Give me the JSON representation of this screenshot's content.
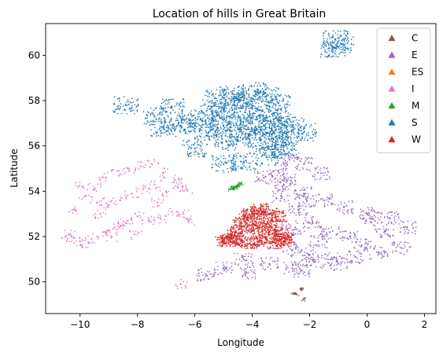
{
  "chart_data": {
    "type": "scatter",
    "title": "Location of hills in Great Britain",
    "xlabel": "Longitude",
    "ylabel": "Latitude",
    "xlim": [
      -11.2,
      2.4
    ],
    "ylim": [
      48.6,
      61.4
    ],
    "xticks": [
      -10,
      -8,
      -6,
      -4,
      -2,
      0,
      2
    ],
    "yticks": [
      50,
      52,
      54,
      56,
      58,
      60
    ],
    "xtick_labels": [
      "−10",
      "−8",
      "−6",
      "−4",
      "−2",
      "0",
      "2"
    ],
    "ytick_labels": [
      "50",
      "52",
      "54",
      "56",
      "58",
      "60"
    ],
    "grid": false,
    "marker": "triangle",
    "legend": {
      "placement": "top-right"
    },
    "series": [
      {
        "name": "C",
        "color": "#8c564b",
        "x": [
          -2.32,
          -2.25,
          -2.3,
          -2.2,
          -2.22,
          -2.58,
          -2.45,
          -2.53,
          -2.5
        ],
        "y": [
          49.7,
          49.72,
          49.68,
          49.25,
          49.22,
          49.48,
          49.45,
          49.46,
          49.5
        ]
      },
      {
        "name": "E",
        "color": "#9467bd",
        "x": [
          -2.6,
          -2.0,
          -1.2,
          -0.4,
          0.4,
          1.2,
          1.4,
          0.8,
          0.0,
          -0.8,
          -1.5,
          -2.2,
          -2.9,
          -3.6,
          -4.3,
          -5.0,
          -5.6,
          -4.2,
          -3.4,
          -2.6,
          -1.8,
          -1.0,
          -0.2,
          0.6,
          -2.7,
          -2.2,
          -1.6,
          -2.8,
          -3.0,
          -2.4,
          -1.9,
          -1.3,
          -0.6,
          0.2,
          -2.5,
          -2.1,
          -3.1,
          -2.3,
          -1.7
        ],
        "y": [
          51.4,
          51.2,
          51.0,
          51.1,
          51.3,
          51.5,
          52.4,
          52.8,
          53.0,
          53.3,
          53.6,
          53.9,
          54.3,
          54.6,
          51.0,
          50.6,
          50.3,
          50.4,
          50.8,
          50.6,
          50.9,
          50.8,
          51.6,
          52.2,
          55.4,
          55.2,
          54.8,
          54.5,
          53.8,
          53.2,
          52.6,
          52.2,
          52.0,
          52.8,
          52.4,
          53.6,
          54.9,
          50.5,
          51.8
        ]
      },
      {
        "name": "ES",
        "color": "#ff7f0e",
        "x": [],
        "y": []
      },
      {
        "name": "I",
        "color": "#e377c2",
        "x": [
          -10.3,
          -10.0,
          -9.6,
          -9.2,
          -8.8,
          -8.4,
          -8.0,
          -7.6,
          -7.2,
          -6.8,
          -6.4,
          -6.2,
          -9.8,
          -9.4,
          -9.0,
          -8.6,
          -8.2,
          -7.8,
          -7.4,
          -7.0,
          -6.6,
          -10.2,
          -9.9,
          -9.5,
          -9.1,
          -8.7,
          -8.3,
          -7.9,
          -7.5,
          -7.1,
          -6.7,
          -6.3,
          -10.4,
          -9.7,
          -8.9,
          -8.1,
          -7.3,
          -6.5,
          -9.3,
          -8.5
        ],
        "y": [
          52.0,
          51.8,
          51.9,
          52.2,
          52.4,
          52.6,
          52.9,
          52.7,
          52.8,
          53.1,
          53.0,
          52.7,
          53.8,
          53.5,
          53.4,
          53.6,
          53.9,
          54.1,
          54.3,
          54.0,
          54.2,
          53.2,
          54.2,
          54.1,
          54.6,
          54.9,
          55.0,
          55.1,
          55.2,
          54.8,
          54.5,
          54.1,
          52.1,
          51.7,
          52.0,
          52.1,
          53.5,
          49.9,
          53.0,
          52.5
        ]
      },
      {
        "name": "M",
        "color": "#2ca02c",
        "x": [
          -4.75,
          -4.65,
          -4.55,
          -4.5,
          -4.45,
          -4.4,
          -4.6,
          -4.7
        ],
        "y": [
          54.08,
          54.12,
          54.18,
          54.25,
          54.3,
          54.35,
          54.2,
          54.15
        ]
      },
      {
        "name": "S",
        "color": "#1f77b4",
        "x": [
          -6.2,
          -5.8,
          -5.4,
          -5.0,
          -4.6,
          -4.2,
          -3.8,
          -3.4,
          -3.0,
          -2.6,
          -2.2,
          -5.6,
          -5.2,
          -4.8,
          -4.4,
          -4.0,
          -3.6,
          -3.2,
          -2.8,
          -4.9,
          -4.5,
          -4.1,
          -3.7,
          -3.3,
          -2.9,
          -5.3,
          -4.7,
          -4.3,
          -3.9,
          -3.5,
          -3.1,
          -6.8,
          -6.5,
          -7.4,
          -7.1,
          -8.4,
          -6.0,
          -5.0,
          -4.3,
          -1.2,
          -0.9,
          -1.1,
          -3.5,
          -2.9
        ],
        "y": [
          57.0,
          57.2,
          57.4,
          57.6,
          57.8,
          57.9,
          57.6,
          57.3,
          57.1,
          56.9,
          56.6,
          56.6,
          56.8,
          57.0,
          57.1,
          57.0,
          56.9,
          56.7,
          56.4,
          56.2,
          56.4,
          56.5,
          56.3,
          56.2,
          56.0,
          58.1,
          58.3,
          58.0,
          58.4,
          58.2,
          57.9,
          57.7,
          56.9,
          57.3,
          56.8,
          57.8,
          55.9,
          55.2,
          55.3,
          60.3,
          60.5,
          60.7,
          55.5,
          55.8
        ]
      },
      {
        "name": "W",
        "color": "#d62728",
        "x": [
          -5.0,
          -4.7,
          -4.4,
          -4.1,
          -3.8,
          -3.5,
          -3.2,
          -2.9,
          -4.6,
          -4.2,
          -3.8,
          -3.4,
          -3.0,
          -4.4,
          -4.0,
          -3.6,
          -3.2,
          -4.2,
          -3.8,
          -3.4,
          -3.1,
          -3.7,
          -2.8,
          -4.8
        ],
        "y": [
          51.8,
          51.9,
          51.8,
          51.7,
          51.8,
          51.9,
          51.7,
          51.8,
          52.2,
          52.3,
          52.4,
          52.2,
          52.1,
          52.6,
          52.7,
          52.6,
          52.5,
          53.0,
          53.1,
          53.0,
          52.9,
          53.2,
          51.9,
          51.9
        ]
      }
    ]
  }
}
